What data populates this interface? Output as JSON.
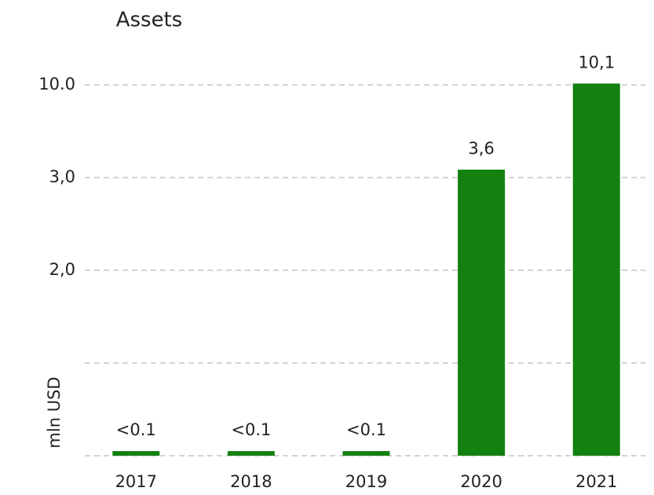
{
  "chart_data": {
    "type": "bar",
    "title": "Assets",
    "y_label": "mln USD",
    "categories": [
      "2017",
      "2018",
      "2019",
      "2020",
      "2021"
    ],
    "values": [
      0.05,
      0.05,
      0.05,
      3.6,
      10.1
    ],
    "value_labels": [
      "<0.1",
      "<0.1",
      "<0.1",
      "3,6",
      "10,1"
    ],
    "color": "#138010",
    "ylim": [
      0,
      11
    ],
    "yticks": [
      0,
      {
        "value": 1,
        "label": null
      },
      {
        "value": 2,
        "label": "2,0"
      },
      {
        "value": 3,
        "label": "3,0"
      },
      {
        "value": 10,
        "label": "10.0"
      }
    ],
    "grid": true
  }
}
